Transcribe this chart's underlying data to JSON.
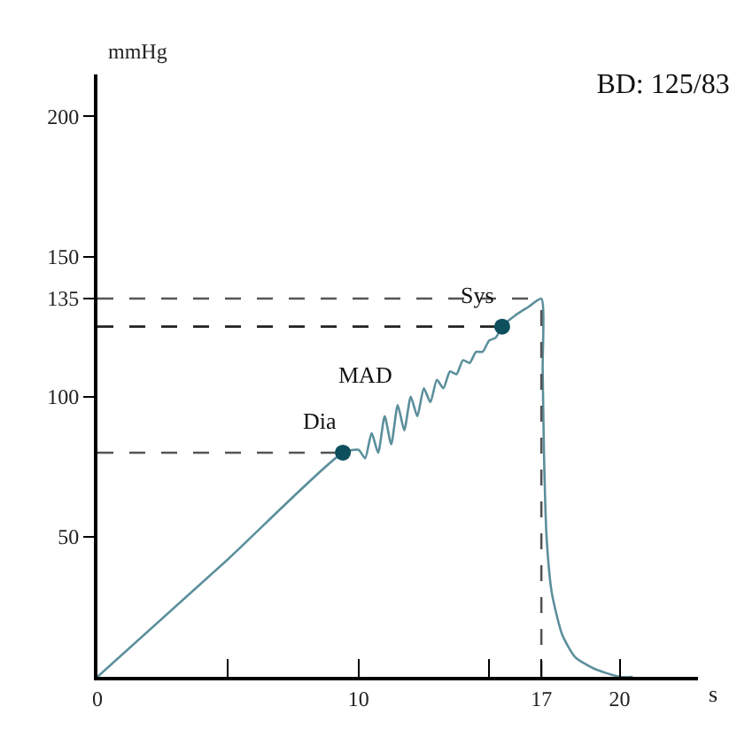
{
  "chart_data": {
    "type": "line",
    "title": "BD: 125/83",
    "xlabel": "s",
    "ylabel": "mmHg",
    "xlim": [
      0,
      23
    ],
    "ylim": [
      0,
      215
    ],
    "xticks": [
      {
        "value": 0,
        "label": "0"
      },
      {
        "value": 5,
        "label": null
      },
      10,
      {
        "value": 15,
        "label": null
      },
      17,
      20
    ],
    "yticks": [
      50,
      100,
      135,
      150,
      200
    ],
    "series": [
      {
        "color": "#5b8f9c",
        "x": [
          0,
          5,
          9.4,
          10.0,
          10.25,
          10.5,
          10.75,
          11.0,
          11.25,
          11.5,
          11.75,
          12.0,
          12.25,
          12.5,
          12.75,
          13.0,
          13.25,
          13.5,
          13.75,
          14.0,
          14.25,
          14.5,
          14.75,
          15.0,
          15.25,
          15.5,
          16.0,
          16.5,
          17.0,
          17.05,
          17.1,
          17.2,
          17.4,
          17.8,
          18.3,
          19.0,
          20.0,
          20.5
        ],
        "values": [
          0,
          42,
          80,
          81,
          78,
          87,
          80,
          93,
          83,
          97,
          88,
          100,
          93,
          103,
          98,
          106,
          103,
          109,
          108,
          113,
          112,
          116,
          116,
          120,
          121,
          125,
          129,
          132,
          135,
          110,
          80,
          50,
          30,
          15,
          7,
          3,
          0,
          0
        ]
      },
      {
        "type": "line",
        "line_style": "dashed",
        "color": "#555555",
        "x": [
          0,
          17
        ],
        "values": [
          135,
          135
        ]
      },
      {
        "type": "line",
        "line_style": "dashed",
        "color": "#222222",
        "x": [
          0,
          15.5
        ],
        "values": [
          125,
          125
        ]
      },
      {
        "type": "line",
        "line_style": "dashed",
        "color": "#555555",
        "x": [
          0,
          9.4
        ],
        "values": [
          80,
          80
        ]
      },
      {
        "type": "line",
        "line_style": "dashed",
        "color": "#555555",
        "x": [
          17,
          17
        ],
        "values": [
          0,
          135
        ]
      },
      {
        "type": "scatter",
        "marker": "circle",
        "color": "#0d4f5c",
        "x": [
          9.4,
          15.5
        ],
        "values": [
          80,
          125
        ]
      }
    ],
    "annotations": [
      {
        "text": "Dia",
        "x": 9.4,
        "y": 80
      },
      {
        "text": "MAD",
        "x": 11.5,
        "y": 97
      },
      {
        "text": "Sys",
        "x": 15.5,
        "y": 125
      }
    ]
  }
}
